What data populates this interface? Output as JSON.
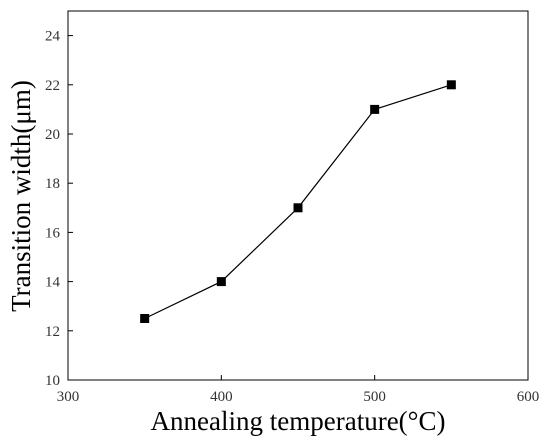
{
  "chart_data": {
    "type": "line",
    "xlabel": "Annealing temperature(°C)",
    "ylabel": "Transition width(μm)",
    "xlim": [
      300,
      600
    ],
    "ylim": [
      10,
      25
    ],
    "x_ticks": [
      300,
      400,
      500,
      600
    ],
    "y_ticks": [
      10,
      12,
      14,
      16,
      18,
      20,
      22,
      24
    ],
    "grid": false,
    "series": [
      {
        "marker": "square",
        "color": "#000000",
        "x": [
          350,
          400,
          450,
          500,
          550
        ],
        "y": [
          12.5,
          14,
          17,
          21,
          22
        ]
      }
    ]
  }
}
